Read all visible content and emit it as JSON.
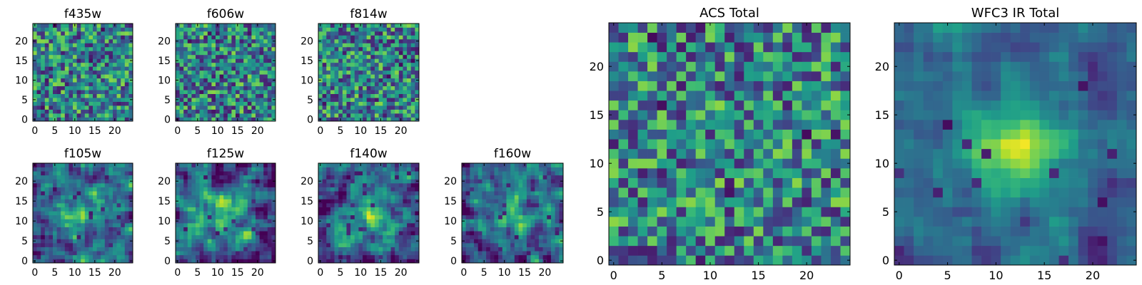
{
  "chart_data": [
    {
      "type": "heatmap",
      "title": "f435w",
      "xlim": [
        0,
        24
      ],
      "ylim": [
        0,
        24
      ],
      "xticks": [
        "0",
        "5",
        "10",
        "15",
        "20"
      ],
      "yticks": [
        "0",
        "5",
        "10",
        "15",
        "20"
      ],
      "colormap": "viridis",
      "pattern": "noise",
      "seed": 11
    },
    {
      "type": "heatmap",
      "title": "f606w",
      "xlim": [
        0,
        24
      ],
      "ylim": [
        0,
        24
      ],
      "xticks": [
        "0",
        "5",
        "10",
        "15",
        "20"
      ],
      "yticks": [
        "0",
        "5",
        "10",
        "15",
        "20"
      ],
      "colormap": "viridis",
      "pattern": "noise",
      "seed": 23
    },
    {
      "type": "heatmap",
      "title": "f814w",
      "xlim": [
        0,
        24
      ],
      "ylim": [
        0,
        24
      ],
      "xticks": [
        "0",
        "5",
        "10",
        "15",
        "20"
      ],
      "yticks": [
        "0",
        "5",
        "10",
        "15",
        "20"
      ],
      "colormap": "viridis",
      "pattern": "noise",
      "seed": 37
    },
    {
      "type": "heatmap",
      "title": "f105w",
      "xlim": [
        0,
        24
      ],
      "ylim": [
        0,
        24
      ],
      "xticks": [
        "0",
        "5",
        "10",
        "15",
        "20"
      ],
      "yticks": [
        "0",
        "5",
        "10",
        "15",
        "20"
      ],
      "colormap": "viridis",
      "pattern": "smooth",
      "seed": 41
    },
    {
      "type": "heatmap",
      "title": "f125w",
      "xlim": [
        0,
        24
      ],
      "ylim": [
        0,
        24
      ],
      "xticks": [
        "0",
        "5",
        "10",
        "15",
        "20"
      ],
      "yticks": [
        "0",
        "5",
        "10",
        "15",
        "20"
      ],
      "colormap": "viridis",
      "pattern": "smooth",
      "seed": 53
    },
    {
      "type": "heatmap",
      "title": "f140w",
      "xlim": [
        0,
        24
      ],
      "ylim": [
        0,
        24
      ],
      "xticks": [
        "0",
        "5",
        "10",
        "15",
        "20"
      ],
      "yticks": [
        "0",
        "5",
        "10",
        "15",
        "20"
      ],
      "colormap": "viridis",
      "pattern": "smooth",
      "seed": 67
    },
    {
      "type": "heatmap",
      "title": "f160w",
      "xlim": [
        0,
        24
      ],
      "ylim": [
        0,
        24
      ],
      "xticks": [
        "0",
        "5",
        "10",
        "15",
        "20"
      ],
      "yticks": [
        "0",
        "5",
        "10",
        "15",
        "20"
      ],
      "colormap": "viridis",
      "pattern": "smooth",
      "seed": 79
    },
    {
      "type": "heatmap",
      "title": "ACS Total",
      "xlim": [
        0,
        24
      ],
      "ylim": [
        0,
        24
      ],
      "xticks": [
        "0",
        "5",
        "10",
        "15",
        "20"
      ],
      "yticks": [
        "0",
        "5",
        "10",
        "15",
        "20"
      ],
      "colormap": "viridis",
      "pattern": "noise",
      "seed": 97
    },
    {
      "type": "heatmap",
      "title": "WFC3 IR Total",
      "xlim": [
        0,
        24
      ],
      "ylim": [
        0,
        24
      ],
      "xticks": [
        "0",
        "5",
        "10",
        "15",
        "20"
      ],
      "yticks": [
        "0",
        "5",
        "10",
        "15",
        "20"
      ],
      "colormap": "viridis",
      "pattern": "source",
      "seed": 131
    }
  ]
}
